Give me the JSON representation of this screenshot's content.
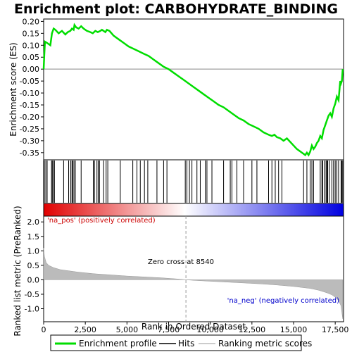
{
  "chart_data": {
    "type": "line",
    "title": "Enrichment plot: CARBOHYDRATE_BINDING",
    "xlabel": "Rank in Ordered Dataset",
    "xlim": [
      0,
      18000
    ],
    "x_ticks": [
      0,
      2500,
      5000,
      7500,
      10000,
      12500,
      15000,
      17500
    ],
    "x_tick_labels": [
      "0",
      "2,500",
      "5,000",
      "7,500",
      "10,000",
      "12,500",
      "15,000",
      "17,500"
    ],
    "es_panel": {
      "ylabel": "Enrichment score (ES)",
      "ylim": [
        -0.38,
        0.21
      ],
      "y_ticks": [
        0.2,
        0.15,
        0.1,
        0.05,
        0.0,
        -0.05,
        -0.1,
        -0.15,
        -0.2,
        -0.25,
        -0.3,
        -0.35
      ],
      "y_tick_labels": [
        "0.20",
        "0.15",
        "0.10",
        "0.05",
        "0.00",
        "-0.05",
        "-0.10",
        "-0.15",
        "-0.20",
        "-0.25",
        "-0.30",
        "-0.35"
      ],
      "series": [
        {
          "name": "Enrichment profile",
          "color": "#00dd00",
          "x": [
            0,
            40,
            80,
            200,
            400,
            500,
            600,
            700,
            900,
            1100,
            1300,
            1450,
            1600,
            1700,
            1800,
            1850,
            1950,
            2100,
            2250,
            2400,
            2600,
            2800,
            2950,
            3100,
            3250,
            3400,
            3500,
            3600,
            3700,
            3800,
            3950,
            4200,
            4500,
            4800,
            5100,
            5400,
            5700,
            6000,
            6300,
            6600,
            6900,
            7200,
            7500,
            7800,
            8100,
            8400,
            8700,
            9000,
            9300,
            9600,
            9900,
            10200,
            10500,
            10800,
            11100,
            11400,
            11700,
            12000,
            12300,
            12600,
            12900,
            13200,
            13500,
            13700,
            13850,
            14000,
            14200,
            14400,
            14600,
            14800,
            15000,
            15200,
            15400,
            15600,
            15700,
            15800,
            15900,
            16000,
            16100,
            16200,
            16300,
            16400,
            16500,
            16600,
            16700,
            16800,
            16900,
            17000,
            17100,
            17200,
            17300,
            17400,
            17500,
            17600,
            17700,
            17800,
            17850,
            17900,
            17950
          ],
          "values": [
            0.0,
            0.06,
            0.115,
            0.11,
            0.1,
            0.15,
            0.17,
            0.165,
            0.15,
            0.16,
            0.145,
            0.155,
            0.16,
            0.17,
            0.165,
            0.185,
            0.175,
            0.17,
            0.18,
            0.17,
            0.16,
            0.155,
            0.15,
            0.16,
            0.155,
            0.16,
            0.165,
            0.16,
            0.155,
            0.165,
            0.16,
            0.14,
            0.125,
            0.11,
            0.095,
            0.085,
            0.075,
            0.065,
            0.055,
            0.04,
            0.025,
            0.01,
            0.0,
            -0.015,
            -0.03,
            -0.045,
            -0.06,
            -0.075,
            -0.09,
            -0.105,
            -0.12,
            -0.135,
            -0.15,
            -0.16,
            -0.175,
            -0.19,
            -0.205,
            -0.215,
            -0.23,
            -0.24,
            -0.25,
            -0.265,
            -0.275,
            -0.28,
            -0.275,
            -0.285,
            -0.29,
            -0.3,
            -0.29,
            -0.305,
            -0.32,
            -0.335,
            -0.345,
            -0.355,
            -0.36,
            -0.35,
            -0.36,
            -0.345,
            -0.32,
            -0.335,
            -0.325,
            -0.31,
            -0.3,
            -0.28,
            -0.29,
            -0.255,
            -0.235,
            -0.215,
            -0.195,
            -0.185,
            -0.2,
            -0.165,
            -0.145,
            -0.115,
            -0.13,
            -0.05,
            -0.06,
            -0.05,
            0.0
          ]
        }
      ]
    },
    "hits_panel": {
      "legend": "Hits",
      "hit_ranks": [
        40,
        130,
        210,
        470,
        520,
        570,
        650,
        1200,
        1500,
        1620,
        1700,
        1750,
        1820,
        1900,
        2250,
        2980,
        3050,
        3200,
        3280,
        3350,
        3600,
        3750,
        3850,
        4600,
        5350,
        5600,
        5800,
        6050,
        6250,
        6800,
        7200,
        7400,
        8500,
        8600,
        8750,
        8900,
        9200,
        9400,
        9700,
        9800,
        10100,
        10800,
        11200,
        11300,
        11600,
        12000,
        12500,
        12800,
        13500,
        13700,
        13900,
        14100,
        14300,
        15600,
        15800,
        16000,
        16100,
        16200,
        16600,
        16700,
        16750,
        16850,
        16950,
        17000,
        17050,
        17150,
        17300,
        17400,
        17500,
        17600,
        17700,
        17850,
        17900,
        17950
      ]
    },
    "gradient_bar": {
      "pos_color": "#e00000",
      "mid_color": "#ffffff",
      "neg_color": "#0000e0"
    },
    "metric_panel": {
      "ylabel": "Ranked list metric (PreRanked)",
      "ylim": [
        -1.45,
        2.2
      ],
      "y_ticks": [
        2.0,
        1.5,
        1.0,
        0.5,
        0.0,
        -0.5,
        -1.0
      ],
      "y_tick_labels": [
        "2.0",
        "1.5",
        "1.0",
        "0.5",
        "0.0",
        "-0.5",
        "-1.0"
      ],
      "legend": "Ranking metric scores",
      "fill_color": "#bbbbbb",
      "x": [
        0,
        50,
        150,
        300,
        600,
        1000,
        2000,
        3000,
        4000,
        5000,
        6000,
        7000,
        8000,
        8540,
        9000,
        10000,
        11000,
        12000,
        13000,
        14000,
        15000,
        16000,
        16500,
        17000,
        17300,
        17500,
        17700,
        17850,
        17950
      ],
      "values": [
        1.1,
        0.8,
        0.6,
        0.5,
        0.42,
        0.35,
        0.27,
        0.21,
        0.17,
        0.13,
        0.1,
        0.07,
        0.03,
        0.0,
        -0.02,
        -0.05,
        -0.08,
        -0.11,
        -0.14,
        -0.18,
        -0.23,
        -0.3,
        -0.36,
        -0.45,
        -0.52,
        -0.6,
        -0.72,
        -0.9,
        -1.35
      ],
      "zero_cross_rank": 8540,
      "zero_cross_label": "Zero cross at 8540",
      "pos_label": "'na_pos' (positively correlated)",
      "neg_label": "'na_neg' (negatively correlated)",
      "pos_label_color": "#cc0000",
      "neg_label_color": "#0000cc"
    },
    "legend": {
      "items": [
        "Enrichment profile",
        "Hits",
        "Ranking metric scores"
      ],
      "colors": [
        "#00dd00",
        "#000000",
        "#bbbbbb"
      ]
    }
  }
}
